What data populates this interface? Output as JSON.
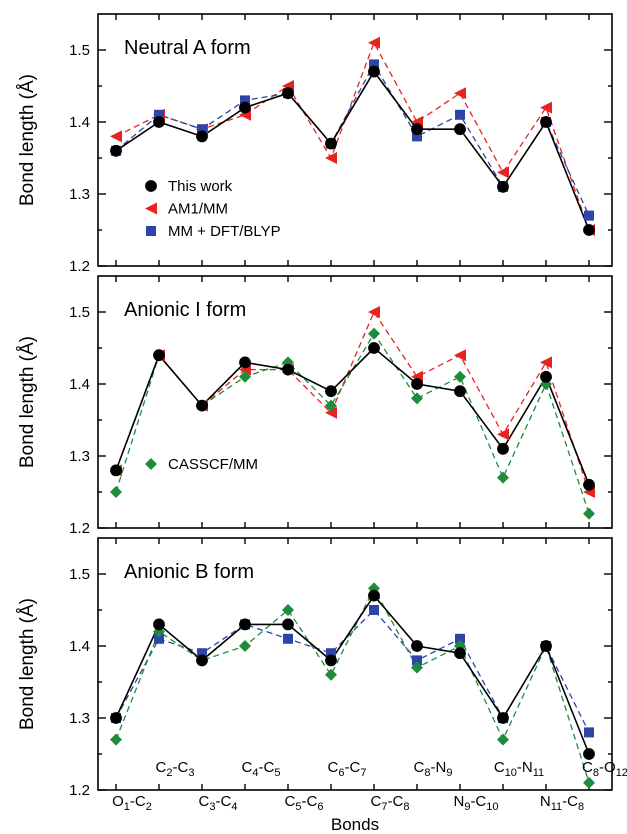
{
  "chart_data": {
    "type": "line",
    "xlabel": "Bonds",
    "ylabel": "Bond length (Å)",
    "ylim": [
      1.2,
      1.55
    ],
    "yticks": [
      "1.2",
      "1.3",
      "1.4",
      "1.5"
    ],
    "bond_labels": [
      {
        "main": "O",
        "s1": "1",
        "mid": "-C",
        "s2": "2"
      },
      {
        "main": "C",
        "s1": "2",
        "mid": "-C",
        "s2": "3"
      },
      {
        "main": "C",
        "s1": "3",
        "mid": "-C",
        "s2": "4"
      },
      {
        "main": "C",
        "s1": "4",
        "mid": "-C",
        "s2": "5"
      },
      {
        "main": "C",
        "s1": "5",
        "mid": "-C",
        "s2": "6"
      },
      {
        "main": "C",
        "s1": "6",
        "mid": "-C",
        "s2": "7"
      },
      {
        "main": "C",
        "s1": "7",
        "mid": "-C",
        "s2": "8"
      },
      {
        "main": "C",
        "s1": "8",
        "mid": "-N",
        "s2": "9"
      },
      {
        "main": "N",
        "s1": "9",
        "mid": "-C",
        "s2": "10"
      },
      {
        "main": "C",
        "s1": "10",
        "mid": "-N",
        "s2": "11"
      },
      {
        "main": "N",
        "s1": "11",
        "mid": "-C",
        "s2": "8"
      },
      {
        "main": "C",
        "s1": "8",
        "mid": "-O",
        "s2": "12"
      }
    ],
    "series_styles": {
      "This work": {
        "color": "#000000",
        "marker": "circle",
        "dash": ""
      },
      "AM1/MM": {
        "color": "#e8231f",
        "marker": "triangle-left",
        "dash": "6,4"
      },
      "MM + DFT/BLYP": {
        "color": "#2c45a6",
        "marker": "square",
        "dash": "6,4"
      },
      "CASSCF/MM": {
        "color": "#1e8c3a",
        "marker": "diamond",
        "dash": "6,4"
      }
    },
    "panels": [
      {
        "title": "Neutral A form",
        "legend": [
          "This work",
          "AM1/MM",
          "MM + DFT/BLYP"
        ],
        "legend_position": "lower-left",
        "series": [
          {
            "name": "AM1/MM",
            "values": [
              1.38,
              1.41,
              1.39,
              1.41,
              1.45,
              1.35,
              1.51,
              1.4,
              1.44,
              1.33,
              1.42,
              1.25
            ]
          },
          {
            "name": "MM + DFT/BLYP",
            "values": [
              1.36,
              1.41,
              1.39,
              1.43,
              1.44,
              1.37,
              1.48,
              1.38,
              1.41,
              1.31,
              1.4,
              1.27
            ]
          },
          {
            "name": "This work",
            "values": [
              1.36,
              1.4,
              1.38,
              1.42,
              1.44,
              1.37,
              1.47,
              1.39,
              1.39,
              1.31,
              1.4,
              1.25
            ]
          }
        ]
      },
      {
        "title": "Anionic I form",
        "legend": [
          "CASSCF/MM"
        ],
        "legend_position": "lower-left",
        "series": [
          {
            "name": "AM1/MM",
            "values": [
              1.28,
              1.44,
              1.37,
              1.42,
              1.42,
              1.36,
              1.5,
              1.41,
              1.44,
              1.33,
              1.43,
              1.25
            ]
          },
          {
            "name": "CASSCF/MM",
            "values": [
              1.25,
              1.44,
              1.37,
              1.41,
              1.43,
              1.37,
              1.47,
              1.38,
              1.41,
              1.27,
              1.4,
              1.22
            ]
          },
          {
            "name": "This work",
            "values": [
              1.28,
              1.44,
              1.37,
              1.43,
              1.42,
              1.39,
              1.45,
              1.4,
              1.39,
              1.31,
              1.41,
              1.26
            ]
          }
        ]
      },
      {
        "title": "Anionic B form",
        "legend": [],
        "legend_position": "",
        "series": [
          {
            "name": "MM + DFT/BLYP",
            "values": [
              1.3,
              1.41,
              1.39,
              1.43,
              1.41,
              1.39,
              1.45,
              1.38,
              1.41,
              1.3,
              1.4,
              1.28
            ]
          },
          {
            "name": "CASSCF/MM",
            "values": [
              1.27,
              1.42,
              1.38,
              1.4,
              1.45,
              1.36,
              1.48,
              1.37,
              1.4,
              1.27,
              1.4,
              1.21
            ]
          },
          {
            "name": "This work",
            "values": [
              1.3,
              1.43,
              1.38,
              1.43,
              1.43,
              1.38,
              1.47,
              1.4,
              1.39,
              1.3,
              1.4,
              1.25
            ]
          }
        ]
      }
    ]
  }
}
